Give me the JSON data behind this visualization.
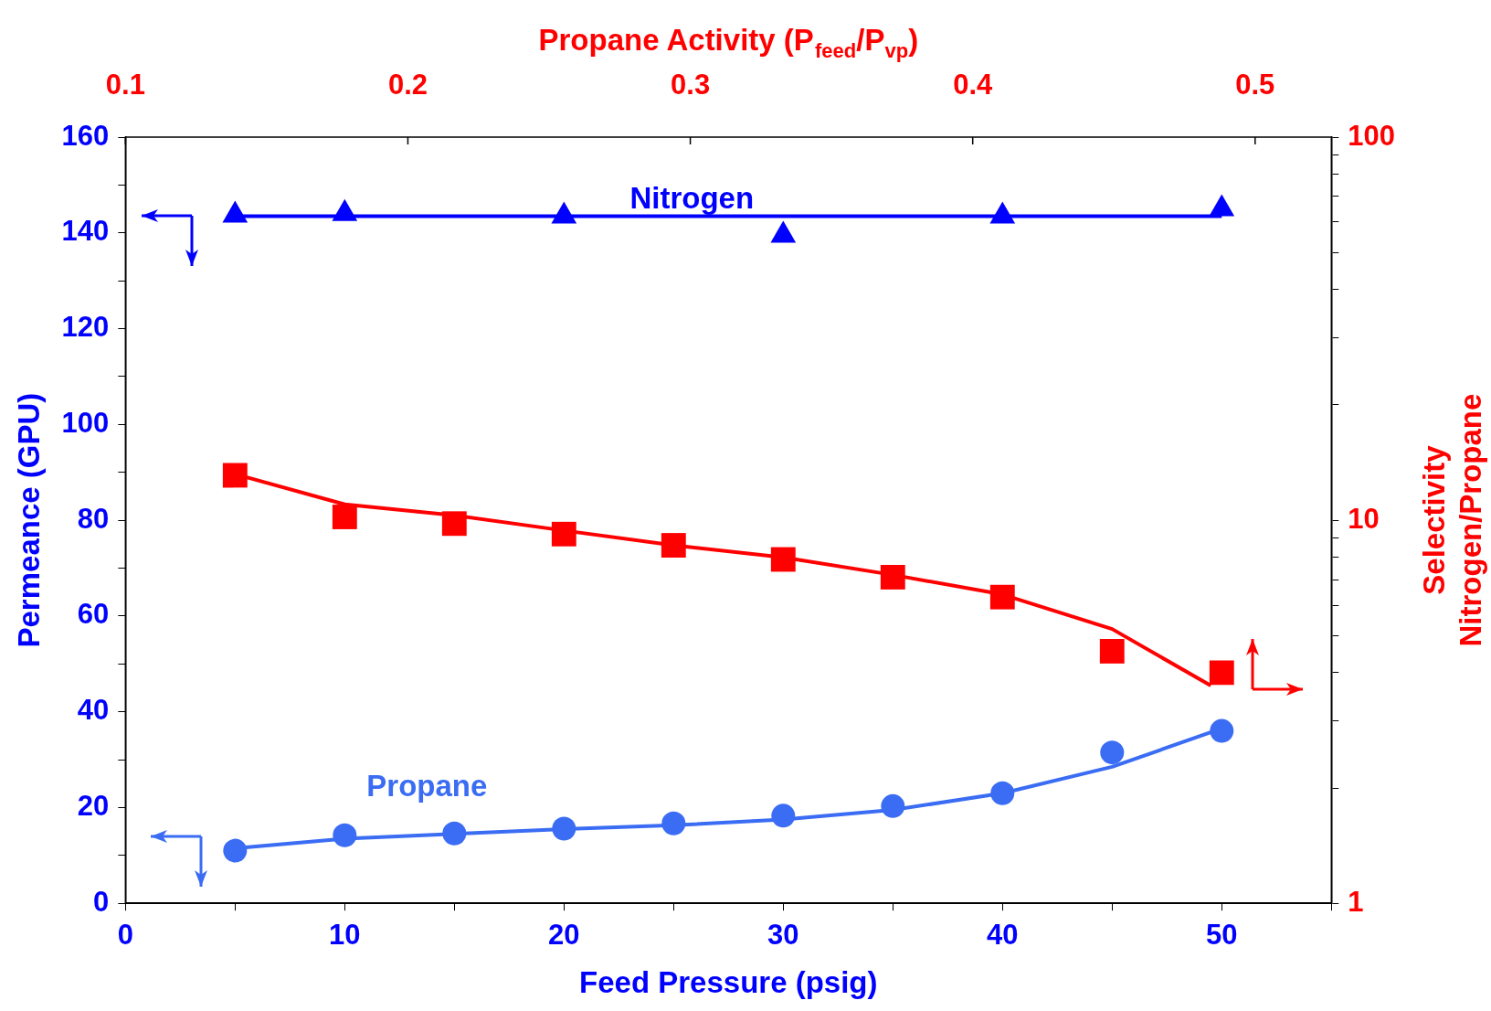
{
  "chart_data": {
    "type": "scatter",
    "xlabel": "Feed Pressure (psig)",
    "ylabel": "Permeance (GPU)",
    "y2label": "Selectivity Nitrogen/Propane",
    "x2label": "Propane Activity (P$_{feed}$/P$_{vp}$)",
    "xlim": [
      0,
      55
    ],
    "xticks": [
      0,
      {
        "value": 5,
        "label": null
      },
      10,
      {
        "value": 15,
        "label": null
      },
      20,
      {
        "value": 25,
        "label": null
      },
      30,
      {
        "value": 35,
        "label": null
      },
      40,
      {
        "value": 45,
        "label": null
      },
      50,
      {
        "value": 55,
        "label": null
      }
    ],
    "ylim": [
      0,
      160
    ],
    "yticks": [
      0,
      {
        "value": 10,
        "label": null
      },
      20,
      {
        "value": 30,
        "label": null
      },
      40,
      {
        "value": 50,
        "label": null
      },
      60,
      {
        "value": 70,
        "label": null
      },
      80,
      {
        "value": 90,
        "label": null
      },
      100,
      {
        "value": 110,
        "label": null
      },
      120,
      {
        "value": 130,
        "label": null
      },
      140,
      {
        "value": 150,
        "label": null
      },
      160
    ],
    "y2lim": [
      1,
      100
    ],
    "y2ticks": [
      1,
      {
        "value": 2,
        "label": null
      },
      {
        "value": 3,
        "label": null
      },
      {
        "value": 4,
        "label": null
      },
      {
        "value": 5,
        "label": null
      },
      {
        "value": 6,
        "label": null
      },
      {
        "value": 7,
        "label": null
      },
      {
        "value": 8,
        "label": null
      },
      {
        "value": 9,
        "label": null
      },
      10,
      {
        "value": 20,
        "label": null
      },
      {
        "value": 30,
        "label": null
      },
      {
        "value": 40,
        "label": null
      },
      {
        "value": 50,
        "label": null
      },
      {
        "value": 60,
        "label": null
      },
      {
        "value": 70,
        "label": null
      },
      {
        "value": 80,
        "label": null
      },
      {
        "value": 90,
        "label": null
      },
      100
    ],
    "x2lim": [
      0.1,
      0.527
    ],
    "x2ticks": [
      0.1,
      0.2,
      0.3,
      0.4,
      0.5
    ],
    "log": "y2",
    "grid": false,
    "legend": false,
    "series": [
      {
        "name": "Nitrogen",
        "marker": "triangle",
        "color": "#0000ff",
        "x": [
          5,
          10,
          20,
          30,
          40,
          50
        ],
        "values": [
          143.7,
          144,
          143.5,
          139.5,
          143.5,
          145
        ]
      },
      {
        "type": "line",
        "marker": "none",
        "color": "#0000ff",
        "x": [
          5,
          50
        ],
        "values": [
          143.5,
          143.5
        ]
      },
      {
        "name": "Propane",
        "marker": "circle",
        "color": "#3a6cf4",
        "x": [
          5,
          10,
          15,
          20,
          25,
          30,
          35,
          40,
          45,
          50
        ],
        "values": [
          11,
          14.2,
          14.6,
          15.6,
          16.7,
          18.3,
          20.3,
          23,
          31.5,
          36
        ]
      },
      {
        "type": "line",
        "marker": "none",
        "color": "#3a6cf4",
        "x": [
          5,
          10,
          15,
          20,
          25,
          30,
          35,
          40,
          45,
          50
        ],
        "values": [
          11.5,
          13.5,
          14.5,
          15.5,
          16.3,
          17.5,
          19.5,
          23,
          28.5,
          36.5
        ]
      },
      {
        "marker": "square",
        "axis": "y2",
        "color": "#ff0000",
        "x": [
          5,
          10,
          15,
          20,
          25,
          30,
          35,
          40,
          45,
          50
        ],
        "values": [
          13.1,
          10.2,
          9.8,
          9.2,
          8.6,
          7.9,
          7.1,
          6.3,
          4.55,
          4.0
        ]
      },
      {
        "type": "line",
        "marker": "none",
        "axis": "y2",
        "color": "#ff0000",
        "x": [
          5,
          10,
          15,
          20,
          25,
          30,
          35,
          40,
          45,
          49.5
        ],
        "values": [
          13.2,
          11,
          10.3,
          9.4,
          8.6,
          8,
          7.2,
          6.4,
          5.2,
          3.7
        ]
      }
    ]
  }
}
